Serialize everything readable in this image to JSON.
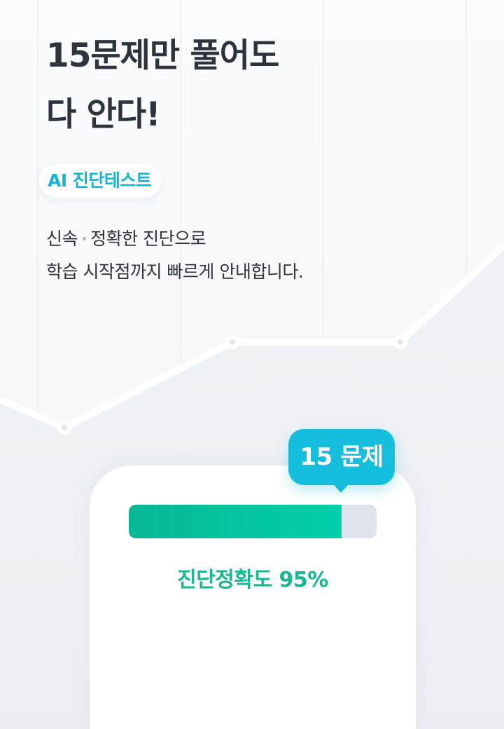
{
  "hero": {
    "headline_line1": "15문제만 풀어도",
    "headline_line2": "다 안다!",
    "tag": "AI 진단테스트",
    "desc_line1_a": "신속",
    "desc_separator": "•",
    "desc_line1_b": "정확한 진단으로",
    "desc_line2": "학습 시작점까지 빠르게 안내합니다."
  },
  "card": {
    "bubble_label": "15 문제",
    "progress_fraction": 0.86,
    "accuracy_label": "진단정확도 95%"
  },
  "colors": {
    "accent_cyan": "#14bedc",
    "accent_green": "#16b891",
    "track": "#dfe4ec"
  }
}
